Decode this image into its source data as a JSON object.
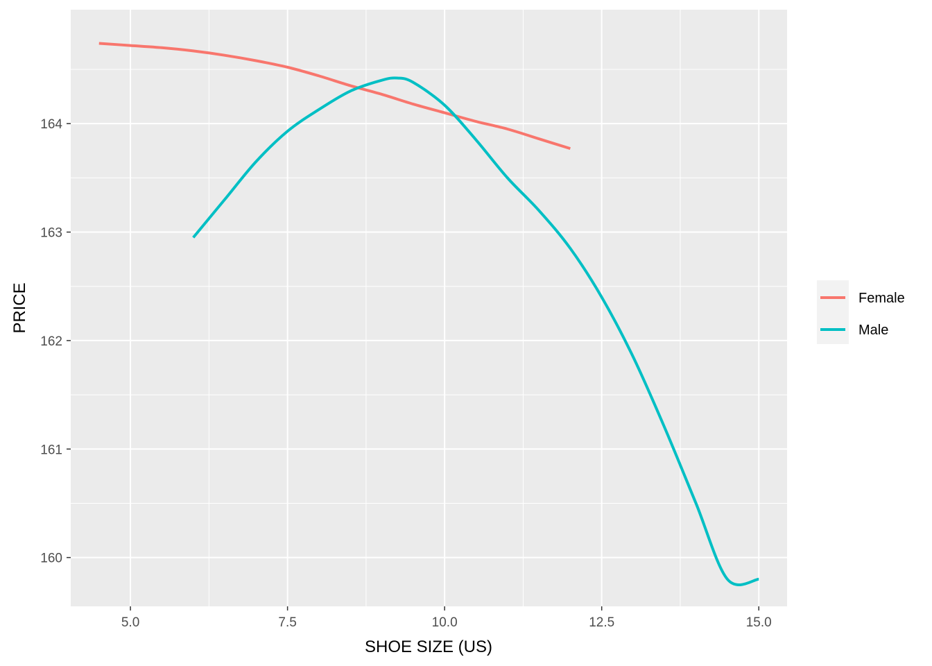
{
  "chart_data": {
    "type": "line",
    "xlabel": "SHOE SIZE (US)",
    "ylabel": "PRICE",
    "xlim": [
      4.05,
      15.45
    ],
    "ylim": [
      159.55,
      165.05
    ],
    "x_ticks": [
      5.0,
      7.5,
      10.0,
      12.5,
      15.0
    ],
    "x_tick_labels": [
      "5.0",
      "7.5",
      "10.0",
      "12.5",
      "15.0"
    ],
    "y_ticks": [
      160,
      161,
      162,
      163,
      164
    ],
    "y_tick_labels": [
      "160",
      "161",
      "162",
      "163",
      "164"
    ],
    "grid": true,
    "legend_position": "right",
    "series": [
      {
        "name": "Female",
        "color": "#F8766D",
        "x": [
          4.5,
          5.0,
          5.5,
          6.0,
          6.5,
          7.0,
          7.5,
          8.0,
          8.5,
          9.0,
          9.5,
          10.0,
          10.5,
          11.0,
          11.5,
          12.0
        ],
        "y": [
          164.74,
          164.72,
          164.7,
          164.67,
          164.63,
          164.58,
          164.52,
          164.44,
          164.35,
          164.27,
          164.18,
          164.1,
          164.02,
          163.95,
          163.86,
          163.77
        ]
      },
      {
        "name": "Male",
        "color": "#00BFC4",
        "x": [
          6.0,
          6.5,
          7.0,
          7.5,
          8.0,
          8.5,
          9.0,
          9.25,
          9.5,
          10.0,
          10.5,
          11.0,
          11.5,
          12.0,
          12.5,
          13.0,
          13.5,
          14.0,
          14.5,
          15.0
        ],
        "y": [
          162.95,
          163.3,
          163.65,
          163.93,
          164.13,
          164.3,
          164.4,
          164.42,
          164.38,
          164.17,
          163.85,
          163.5,
          163.2,
          162.85,
          162.4,
          161.85,
          161.2,
          160.5,
          159.8,
          159.8
        ]
      }
    ]
  }
}
